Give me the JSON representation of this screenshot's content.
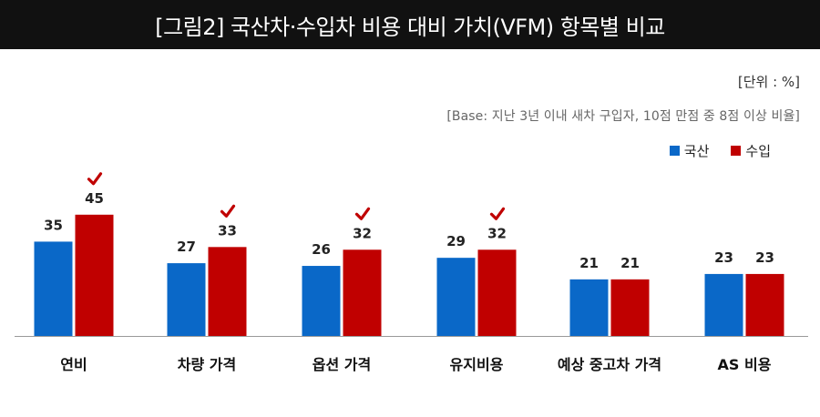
{
  "header": {
    "title": "[그림2] 국산차·수입차 비용 대비 가치(VFM) 항목별 비교"
  },
  "notes": {
    "unit": "[단위 : %]",
    "base": "[Base: 지난 3년 이내 새차 구입자, 10점 만점 중 8점 이상 비율]"
  },
  "chart_data": {
    "type": "bar",
    "categories": [
      "연비",
      "차량 가격",
      "옵션 가격",
      "유지비용",
      "예상 중고차 가격",
      "AS 비용"
    ],
    "series": [
      {
        "name": "국산",
        "color": "#0a68c8",
        "values": [
          35,
          27,
          26,
          29,
          21,
          23
        ]
      },
      {
        "name": "수입",
        "color": "#c00000",
        "values": [
          45,
          33,
          32,
          32,
          21,
          23
        ]
      }
    ],
    "highlighted_categories": [
      "연비",
      "차량 가격",
      "옵션 가격",
      "유지비용"
    ],
    "highlight_icon": "checkmark-icon",
    "highlight_color": "#c00000",
    "legend_position": "top-right",
    "grid": false,
    "ylim": [
      0,
      50
    ]
  }
}
